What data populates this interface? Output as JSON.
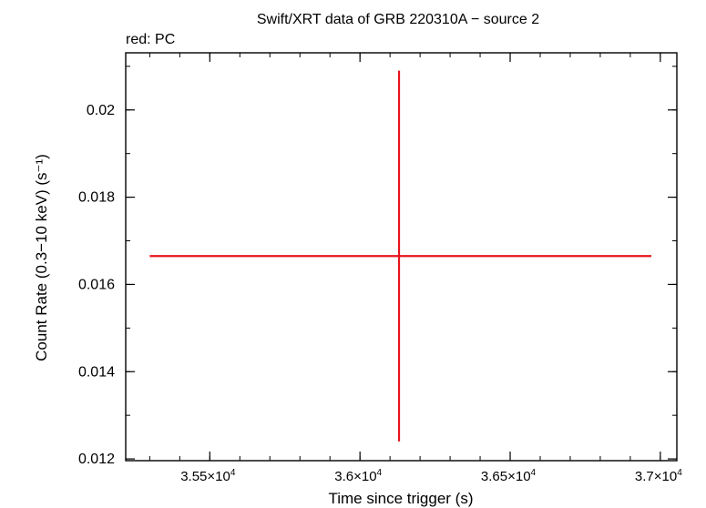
{
  "chart_data": {
    "type": "scatter",
    "title": "Swift/XRT data of GRB 220310A − source 2",
    "subtitle": "red: PC",
    "xlabel": "Time since trigger (s)",
    "ylabel": "Count Rate (0.3−10 keV) (s⁻¹)",
    "xlim": [
      35220,
      37055
    ],
    "ylim": [
      0.01196,
      0.02131
    ],
    "x_ticks": [
      {
        "value": 35500,
        "mant": "3.55×10",
        "exp": "4"
      },
      {
        "value": 36000,
        "mant": "3.6×10",
        "exp": "4"
      },
      {
        "value": 36500,
        "mant": "3.65×10",
        "exp": "4"
      },
      {
        "value": 37000,
        "mant": "3.7×10",
        "exp": "4"
      }
    ],
    "x_minor_step": 100,
    "y_ticks": [
      {
        "value": 0.012,
        "label": "0.012"
      },
      {
        "value": 0.014,
        "label": "0.014"
      },
      {
        "value": 0.016,
        "label": "0.016"
      },
      {
        "value": 0.018,
        "label": "0.018"
      },
      {
        "value": 0.02,
        "label": "0.02"
      }
    ],
    "y_minor_step": 0.001,
    "series": [
      {
        "color": "#e8141c",
        "points": [
          {
            "x": 36130,
            "xlo": 35300,
            "xhi": 36970,
            "y": 0.01665,
            "ylo": 0.0124,
            "yhi": 0.0209
          }
        ]
      }
    ]
  }
}
